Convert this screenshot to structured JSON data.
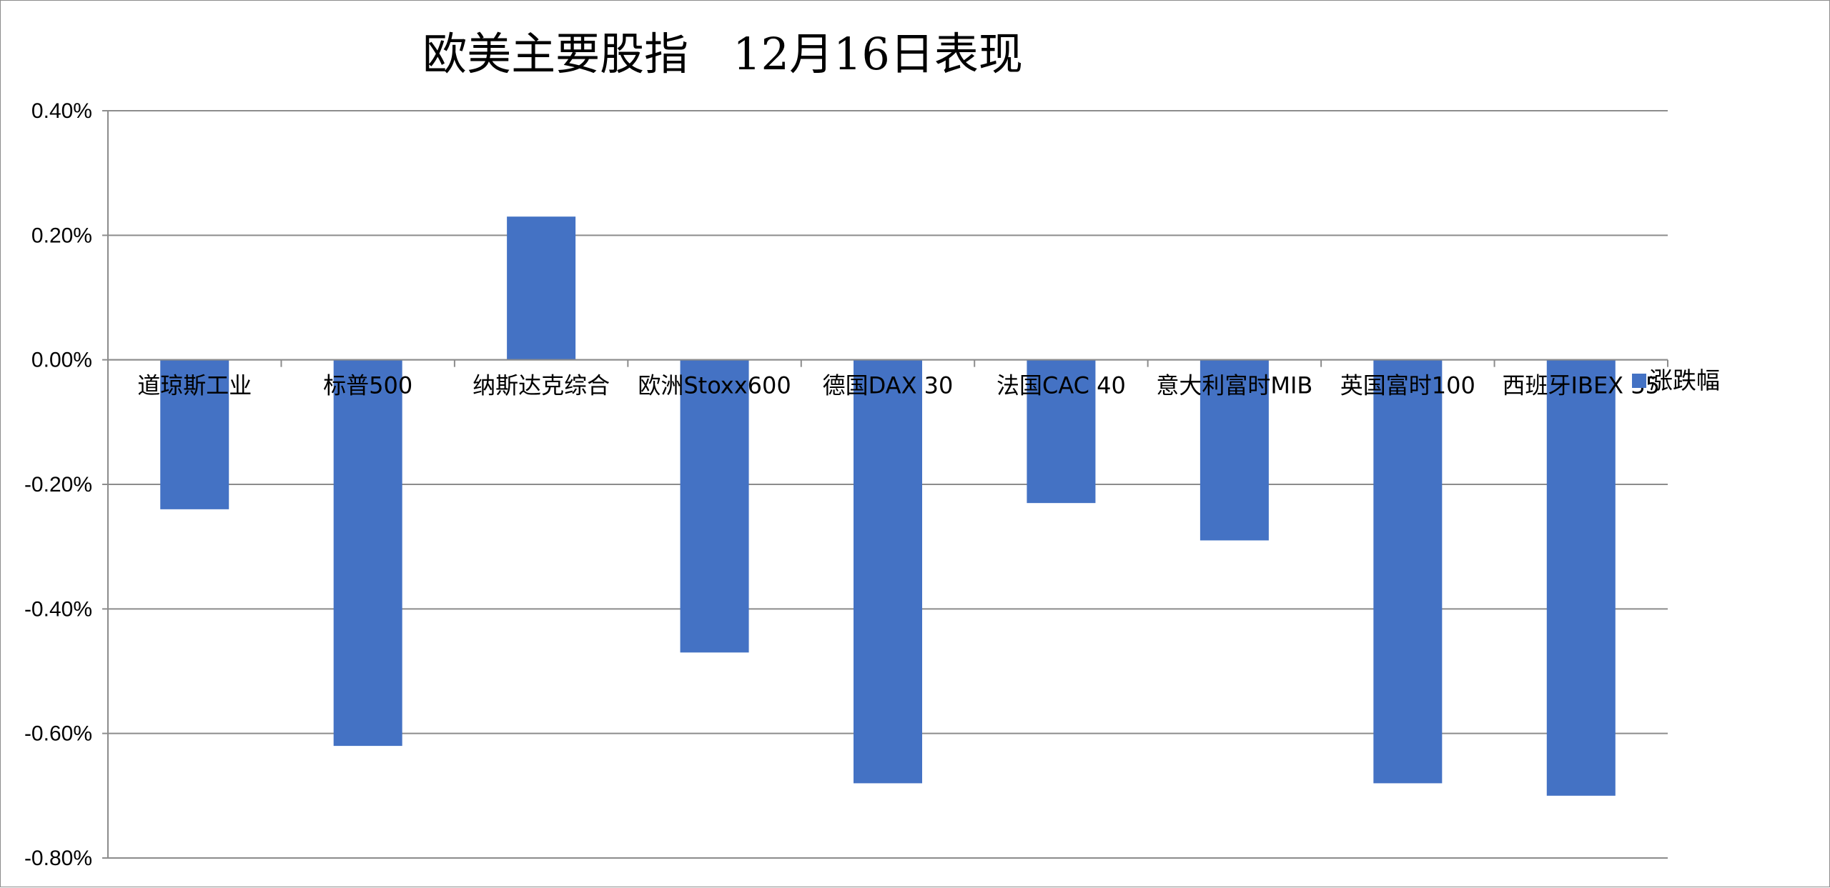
{
  "chart_data": {
    "type": "bar",
    "title": "欧美主要股指　12月16日表现",
    "categories": [
      "道琼斯工业",
      "标普500",
      "纳斯达克综合",
      "欧洲Stoxx600",
      "德国DAX 30",
      "法国CAC 40",
      "意大利富时MIB",
      "英国富时100",
      "西班牙IBEX 35"
    ],
    "series": [
      {
        "name": "涨跌幅",
        "values": [
          -0.24,
          -0.62,
          0.23,
          -0.47,
          -0.68,
          -0.23,
          -0.29,
          -0.68,
          -0.7
        ],
        "color": "#4472C4"
      }
    ],
    "unit": "%",
    "ylim": [
      -0.8,
      0.4
    ],
    "yticks": [
      0.4,
      0.2,
      0.0,
      -0.2,
      -0.4,
      -0.6,
      -0.8
    ],
    "ytick_labels": [
      "0.40%",
      "0.20%",
      "0.00%",
      "-0.20%",
      "-0.40%",
      "-0.60%",
      "-0.80%"
    ],
    "grid": true,
    "legend_position": "right"
  },
  "colors": {
    "bar": "#4472C4",
    "grid": "#8c8c8c",
    "background": "#ffffff"
  }
}
